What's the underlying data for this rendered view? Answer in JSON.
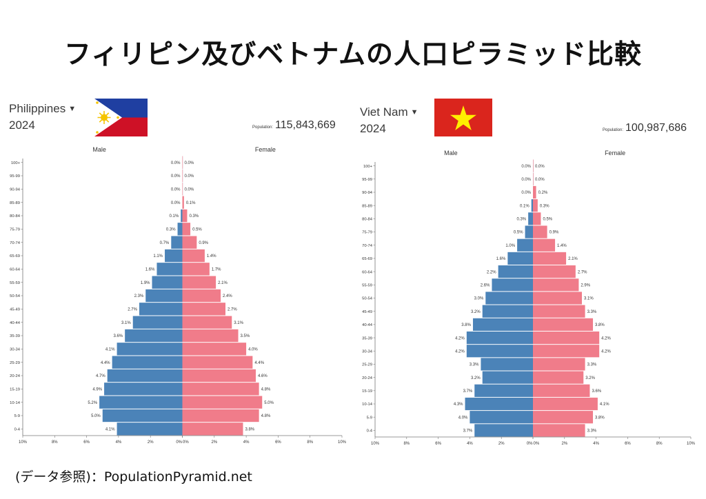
{
  "title": "フィリピン及びベトナムの人口ピラミッド比較",
  "source": "(データ参照)：PopulationPyramid.net",
  "colors": {
    "male": "#4b83b8",
    "female": "#f07c8a",
    "axis": "#777777",
    "text": "#333333"
  },
  "chart_data": [
    {
      "type": "bar",
      "country": "Philippines",
      "year": "2024",
      "population_label": "Population:",
      "population": "115,843,669",
      "male_label": "Male",
      "female_label": "Female",
      "categories": [
        "100+",
        "95-99",
        "90-94",
        "85-89",
        "80-84",
        "75-79",
        "70-74",
        "65-69",
        "60-64",
        "55-59",
        "50-54",
        "45-49",
        "40-44",
        "35-39",
        "30-34",
        "25-29",
        "20-24",
        "15-19",
        "10-14",
        "5-9",
        "0-4"
      ],
      "series": [
        {
          "name": "Male",
          "values": [
            0.0,
            0.0,
            0.0,
            0.0,
            0.1,
            0.3,
            0.7,
            1.1,
            1.6,
            1.9,
            2.3,
            2.7,
            3.1,
            3.6,
            4.1,
            4.4,
            4.7,
            4.9,
            5.2,
            5.0,
            4.1
          ]
        },
        {
          "name": "Female",
          "values": [
            0.0,
            0.0,
            0.0,
            0.1,
            0.3,
            0.5,
            0.9,
            1.4,
            1.7,
            2.1,
            2.4,
            2.7,
            3.1,
            3.5,
            4.0,
            4.4,
            4.6,
            4.8,
            5.0,
            4.8,
            3.8
          ]
        }
      ],
      "xticks": [
        "10%",
        "8%",
        "6%",
        "4%",
        "2%",
        "0%",
        "0%",
        "2%",
        "4%",
        "6%",
        "8%",
        "10%"
      ],
      "xlim": [
        0,
        10
      ]
    },
    {
      "type": "bar",
      "country": "Viet Nam",
      "year": "2024",
      "population_label": "Population:",
      "population": "100,987,686",
      "male_label": "Male",
      "female_label": "Female",
      "categories": [
        "100+",
        "95-99",
        "90-94",
        "85-89",
        "80-84",
        "75-79",
        "70-74",
        "65-69",
        "60-64",
        "55-59",
        "50-54",
        "45-49",
        "40-44",
        "35-39",
        "30-34",
        "25-29",
        "20-24",
        "15-19",
        "10-14",
        "5-9",
        "0-4"
      ],
      "series": [
        {
          "name": "Male",
          "values": [
            0.0,
            0.0,
            0.0,
            0.1,
            0.3,
            0.5,
            1.0,
            1.6,
            2.2,
            2.6,
            3.0,
            3.2,
            3.8,
            4.2,
            4.2,
            3.3,
            3.2,
            3.7,
            4.3,
            4.0,
            3.7
          ]
        },
        {
          "name": "Female",
          "values": [
            0.0,
            0.0,
            0.2,
            0.3,
            0.5,
            0.9,
            1.4,
            2.1,
            2.7,
            2.9,
            3.1,
            3.3,
            3.8,
            4.2,
            4.2,
            3.3,
            3.2,
            3.6,
            4.1,
            3.8,
            3.3
          ]
        }
      ],
      "xticks": [
        "10%",
        "8%",
        "6%",
        "4%",
        "2%",
        "0%",
        "0%",
        "2%",
        "4%",
        "6%",
        "8%",
        "10%"
      ],
      "xlim": [
        0,
        10
      ]
    }
  ]
}
